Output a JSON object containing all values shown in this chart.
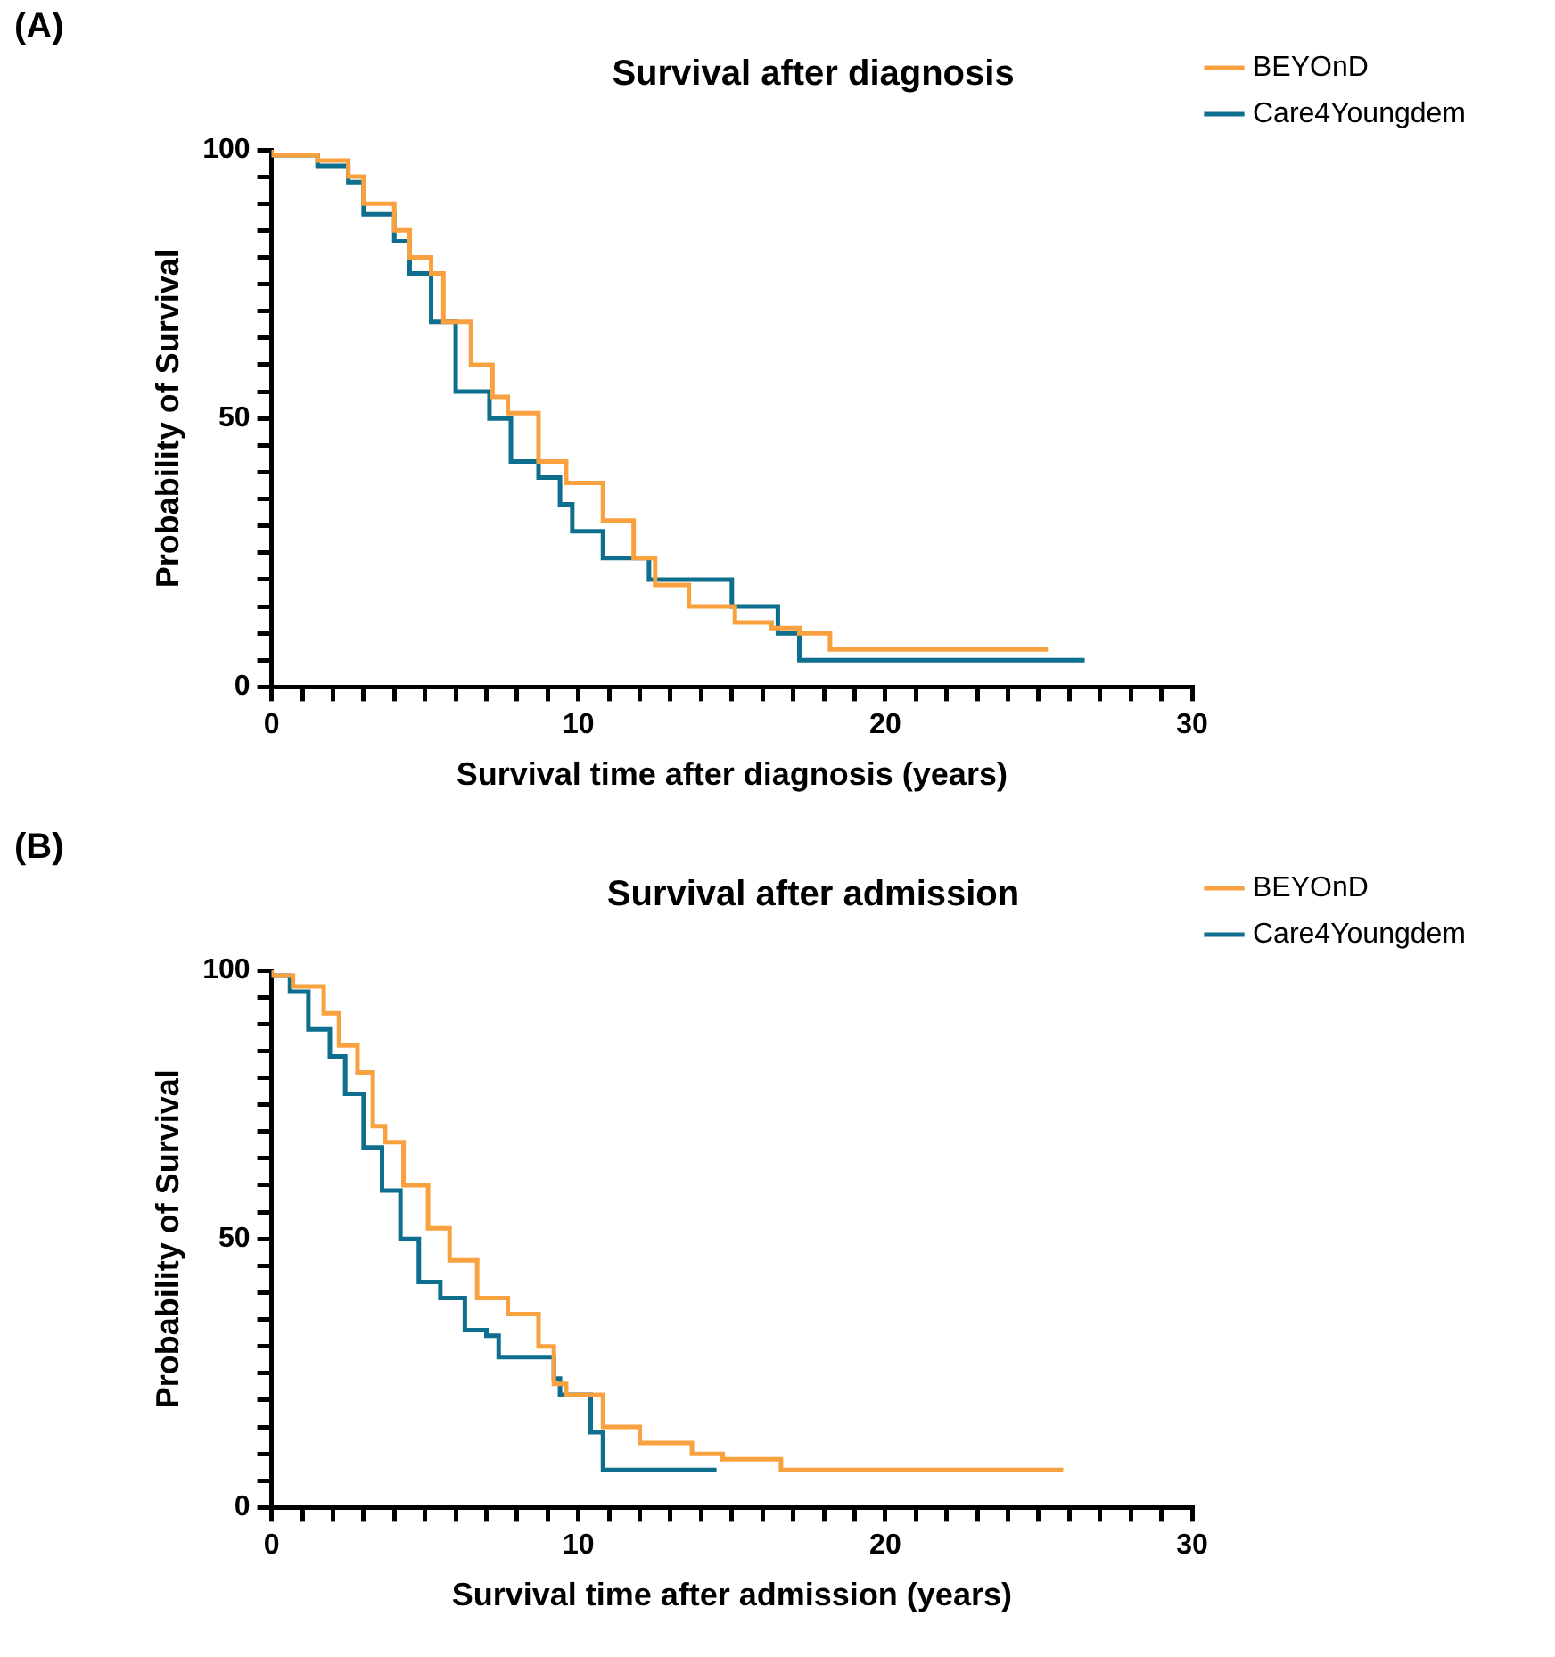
{
  "chart_data": [
    {
      "type": "step",
      "title": "Survival after diagnosis",
      "xlabel": "Survival time after diagnosis (years)",
      "ylabel": "Probability of Survival",
      "annotations": [
        "(A)"
      ],
      "legend": "right",
      "xlim": [
        0,
        30
      ],
      "ylim": [
        0,
        100
      ],
      "xticks": [
        0,
        {
          "value": 1,
          "label": null
        },
        {
          "value": 2,
          "label": null
        },
        {
          "value": 3,
          "label": null
        },
        {
          "value": 4,
          "label": null
        },
        {
          "value": 5,
          "label": null
        },
        {
          "value": 6,
          "label": null
        },
        {
          "value": 7,
          "label": null
        },
        {
          "value": 8,
          "label": null
        },
        {
          "value": 9,
          "label": null
        },
        10,
        {
          "value": 11,
          "label": null
        },
        {
          "value": 12,
          "label": null
        },
        {
          "value": 13,
          "label": null
        },
        {
          "value": 14,
          "label": null
        },
        {
          "value": 15,
          "label": null
        },
        {
          "value": 16,
          "label": null
        },
        {
          "value": 17,
          "label": null
        },
        {
          "value": 18,
          "label": null
        },
        {
          "value": 19,
          "label": null
        },
        20,
        {
          "value": 21,
          "label": null
        },
        {
          "value": 22,
          "label": null
        },
        {
          "value": 23,
          "label": null
        },
        {
          "value": 24,
          "label": null
        },
        {
          "value": 25,
          "label": null
        },
        {
          "value": 26,
          "label": null
        },
        {
          "value": 27,
          "label": null
        },
        {
          "value": 28,
          "label": null
        },
        {
          "value": 29,
          "label": null
        },
        30
      ],
      "yticks": [
        0,
        {
          "value": 5,
          "label": null
        },
        {
          "value": 10,
          "label": null
        },
        {
          "value": 15,
          "label": null
        },
        {
          "value": 20,
          "label": null
        },
        {
          "value": 25,
          "label": null
        },
        {
          "value": 30,
          "label": null
        },
        {
          "value": 35,
          "label": null
        },
        {
          "value": 40,
          "label": null
        },
        {
          "value": 45,
          "label": null
        },
        50,
        {
          "value": 55,
          "label": null
        },
        {
          "value": 60,
          "label": null
        },
        {
          "value": 65,
          "label": null
        },
        {
          "value": 70,
          "label": null
        },
        {
          "value": 75,
          "label": null
        },
        {
          "value": 80,
          "label": null
        },
        {
          "value": 85,
          "label": null
        },
        {
          "value": 90,
          "label": null
        },
        {
          "value": 95,
          "label": null
        },
        100
      ],
      "series": [
        {
          "name": "BEYOnD",
          "color": "#f9a03f",
          "x": [
            0,
            1.5,
            2.5,
            3,
            4,
            4.5,
            5.2,
            5.6,
            6.5,
            7.2,
            7.7,
            8.7,
            9.6,
            10.8,
            11.8,
            12.5,
            13.6,
            15.1,
            16.3,
            17.2,
            18.2,
            23,
            25.3
          ],
          "values": [
            100,
            99,
            98,
            95,
            90,
            85,
            80,
            77,
            68,
            60,
            54,
            51,
            42,
            38,
            31,
            24,
            19,
            15,
            12,
            11,
            10,
            7,
            7
          ]
        },
        {
          "name": "Care4Youngdem",
          "color": "#0e6e8e",
          "x": [
            0,
            1.5,
            2.5,
            3,
            4,
            4.5,
            5.2,
            6,
            7.1,
            7.8,
            8.7,
            9.4,
            9.8,
            10.8,
            12.3,
            15,
            16.5,
            17.2,
            23,
            26.5
          ],
          "values": [
            100,
            99,
            97,
            94,
            88,
            83,
            77,
            68,
            55,
            50,
            42,
            39,
            34,
            29,
            24,
            20,
            15,
            10,
            5,
            5
          ]
        }
      ]
    },
    {
      "type": "step",
      "title": "Survival after admission",
      "xlabel": "Survival time after admission (years)",
      "ylabel": "Probability of Survival",
      "annotations": [
        "(B)"
      ],
      "legend": "right",
      "xlim": [
        0,
        30
      ],
      "ylim": [
        0,
        100
      ],
      "xticks": [
        0,
        {
          "value": 1,
          "label": null
        },
        {
          "value": 2,
          "label": null
        },
        {
          "value": 3,
          "label": null
        },
        {
          "value": 4,
          "label": null
        },
        {
          "value": 5,
          "label": null
        },
        {
          "value": 6,
          "label": null
        },
        {
          "value": 7,
          "label": null
        },
        {
          "value": 8,
          "label": null
        },
        {
          "value": 9,
          "label": null
        },
        10,
        {
          "value": 11,
          "label": null
        },
        {
          "value": 12,
          "label": null
        },
        {
          "value": 13,
          "label": null
        },
        {
          "value": 14,
          "label": null
        },
        {
          "value": 15,
          "label": null
        },
        {
          "value": 16,
          "label": null
        },
        {
          "value": 17,
          "label": null
        },
        {
          "value": 18,
          "label": null
        },
        {
          "value": 19,
          "label": null
        },
        20,
        {
          "value": 21,
          "label": null
        },
        {
          "value": 22,
          "label": null
        },
        {
          "value": 23,
          "label": null
        },
        {
          "value": 24,
          "label": null
        },
        {
          "value": 25,
          "label": null
        },
        {
          "value": 26,
          "label": null
        },
        {
          "value": 27,
          "label": null
        },
        {
          "value": 28,
          "label": null
        },
        {
          "value": 29,
          "label": null
        },
        30
      ],
      "yticks": [
        0,
        {
          "value": 5,
          "label": null
        },
        {
          "value": 10,
          "label": null
        },
        {
          "value": 15,
          "label": null
        },
        {
          "value": 20,
          "label": null
        },
        {
          "value": 25,
          "label": null
        },
        {
          "value": 30,
          "label": null
        },
        {
          "value": 35,
          "label": null
        },
        {
          "value": 40,
          "label": null
        },
        {
          "value": 45,
          "label": null
        },
        50,
        {
          "value": 55,
          "label": null
        },
        {
          "value": 60,
          "label": null
        },
        {
          "value": 65,
          "label": null
        },
        {
          "value": 70,
          "label": null
        },
        {
          "value": 75,
          "label": null
        },
        {
          "value": 80,
          "label": null
        },
        {
          "value": 85,
          "label": null
        },
        {
          "value": 90,
          "label": null
        },
        {
          "value": 95,
          "label": null
        },
        100
      ],
      "series": [
        {
          "name": "BEYOnD",
          "color": "#f9a03f",
          "x": [
            0,
            0.7,
            1.7,
            2.2,
            2.8,
            3.3,
            3.7,
            4.3,
            5.1,
            5.8,
            6.7,
            7.7,
            8.7,
            9.2,
            9.6,
            10.8,
            12,
            13.7,
            14.7,
            16.6,
            17.7,
            25.8
          ],
          "values": [
            100,
            99,
            97,
            92,
            86,
            81,
            71,
            68,
            60,
            52,
            46,
            39,
            36,
            30,
            23,
            21,
            15,
            12,
            10,
            9,
            7,
            7
          ]
        },
        {
          "name": "Care4Youngdem",
          "color": "#0e6e8e",
          "x": [
            0,
            0.6,
            1.2,
            1.9,
            2.4,
            3,
            3.6,
            4.2,
            4.8,
            5.5,
            6.3,
            7,
            7.4,
            9.2,
            9.4,
            10.4,
            10.8,
            13.8,
            14.5
          ],
          "values": [
            100,
            99,
            96,
            89,
            84,
            77,
            67,
            59,
            50,
            42,
            39,
            33,
            32,
            28,
            24,
            21,
            14,
            7,
            7
          ]
        }
      ]
    }
  ]
}
